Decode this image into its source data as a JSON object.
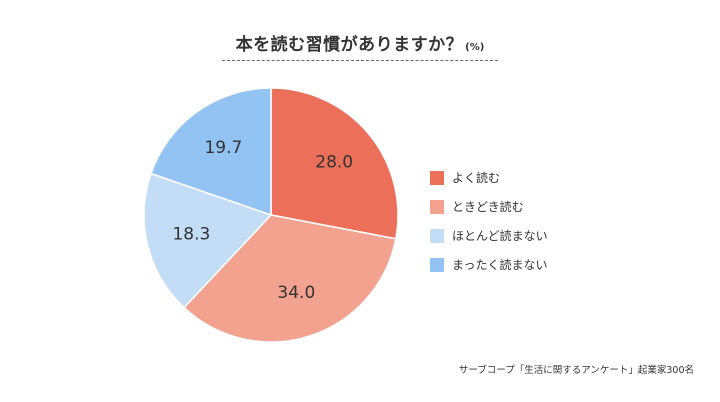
{
  "header": {
    "title": "本を読む習慣がありますか？",
    "unit": "(%)"
  },
  "chart_data": {
    "type": "pie",
    "categories": [
      "よく読む",
      "ときどき読む",
      "ほとんど読まない",
      "まったく読まない"
    ],
    "values": [
      28.0,
      34.0,
      18.3,
      19.7
    ],
    "value_labels": [
      "28.0",
      "34.0",
      "18.3",
      "19.7"
    ],
    "colors": [
      "#ec6f59",
      "#f2a28f",
      "#c4ddf7",
      "#92c3f3"
    ],
    "title": "本を読む習慣がありますか？",
    "unit": "(%)",
    "legend_position": "right",
    "start": "top",
    "direction": "clockwise"
  },
  "legend": {
    "items": [
      {
        "label": "よく読む",
        "color": "#ec6f59"
      },
      {
        "label": "ときどき読む",
        "color": "#f2a28f"
      },
      {
        "label": "ほとんど読まない",
        "color": "#c4ddf7"
      },
      {
        "label": "まったく読まない",
        "color": "#92c3f3"
      }
    ]
  },
  "footer": {
    "source": "サーブコープ「生活に関するアンケート」起業家300名"
  }
}
